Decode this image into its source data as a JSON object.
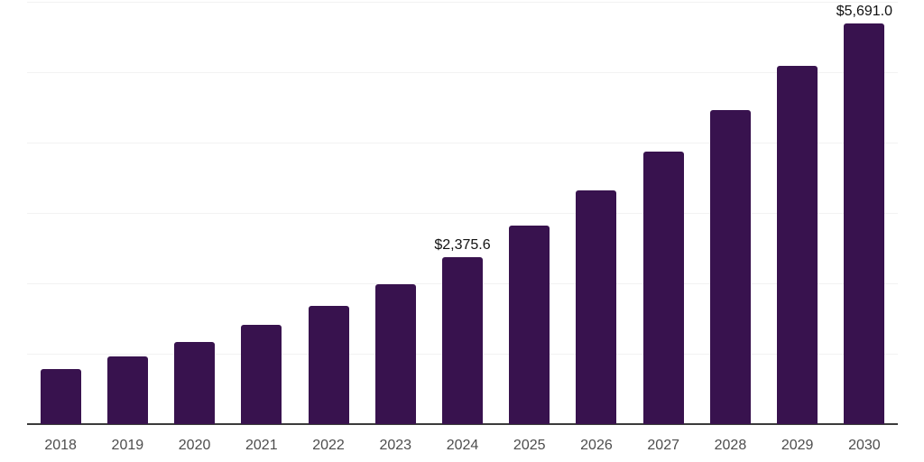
{
  "chart_data": {
    "type": "bar",
    "title": "",
    "xlabel": "",
    "ylabel": "",
    "categories": [
      "2018",
      "2019",
      "2020",
      "2021",
      "2022",
      "2023",
      "2024",
      "2025",
      "2026",
      "2027",
      "2028",
      "2029",
      "2030"
    ],
    "values": [
      780,
      958,
      1163,
      1406,
      1675,
      1988,
      2375.6,
      2820,
      3325,
      3875,
      4465,
      5086,
      5691
    ],
    "data_labels": [
      "",
      "",
      "",
      "",
      "",
      "",
      "$2,375.6",
      "",
      "",
      "",
      "",
      "",
      "$5,691.0"
    ],
    "ylim": [
      0,
      6000
    ],
    "gridline_interval": 1000,
    "grid": true,
    "legend": false,
    "y_tick_labels_visible": false,
    "bar_color": "#38124e",
    "gridline_color": "#f2f2f2",
    "axis_line_color": "#3b3b3b",
    "x_label_color": "#4d4d4d",
    "data_label_color": "#111111"
  }
}
